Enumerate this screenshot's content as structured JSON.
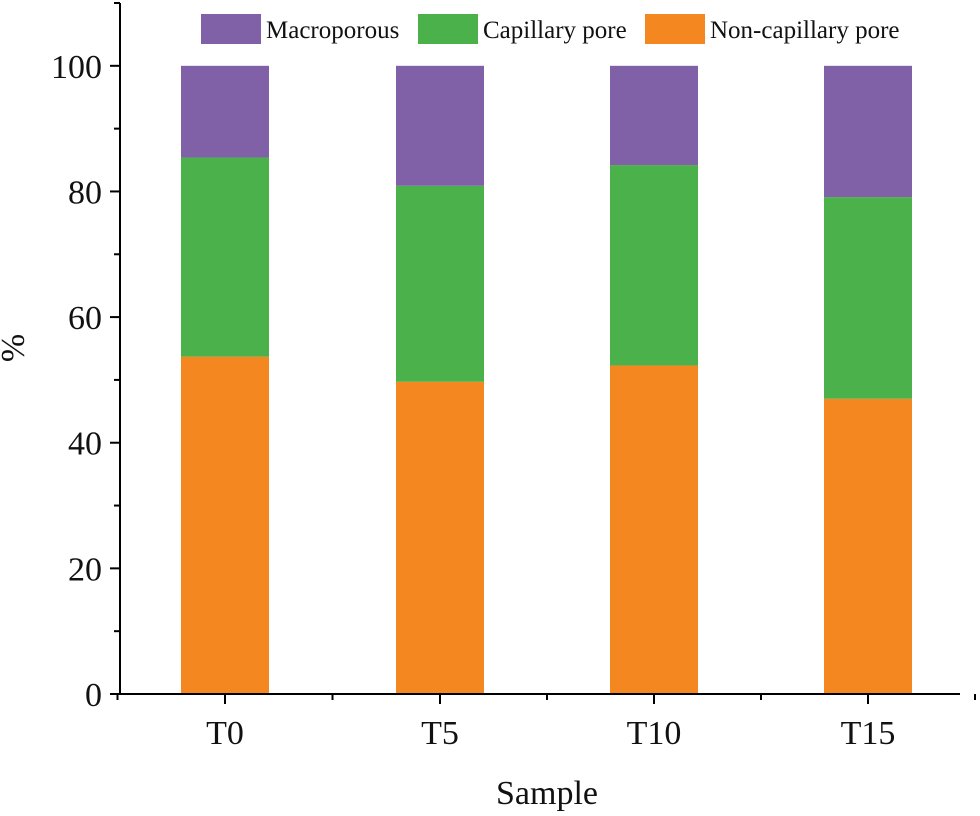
{
  "chart_data": {
    "type": "bar",
    "stacked": true,
    "title": "",
    "xlabel": "Sample",
    "ylabel": "%",
    "ylim": [
      0,
      110
    ],
    "yticks": [
      0,
      20,
      40,
      60,
      80,
      100
    ],
    "categories": [
      "T0",
      "T5",
      "T10",
      "T15"
    ],
    "series": [
      {
        "name": "Non-capillary pore",
        "color": "#f58720",
        "values": [
          53.7,
          49.7,
          52.3,
          47.0
        ]
      },
      {
        "name": "Capillary pore",
        "color": "#4bb24b",
        "values": [
          31.7,
          31.2,
          31.9,
          32.1
        ]
      },
      {
        "name": "Macroporous",
        "color": "#8061a8",
        "values": [
          14.6,
          19.1,
          15.8,
          20.9
        ]
      }
    ],
    "legend": {
      "placement": "top",
      "order": [
        "Macroporous",
        "Capillary pore",
        "Non-capillary pore"
      ]
    }
  }
}
